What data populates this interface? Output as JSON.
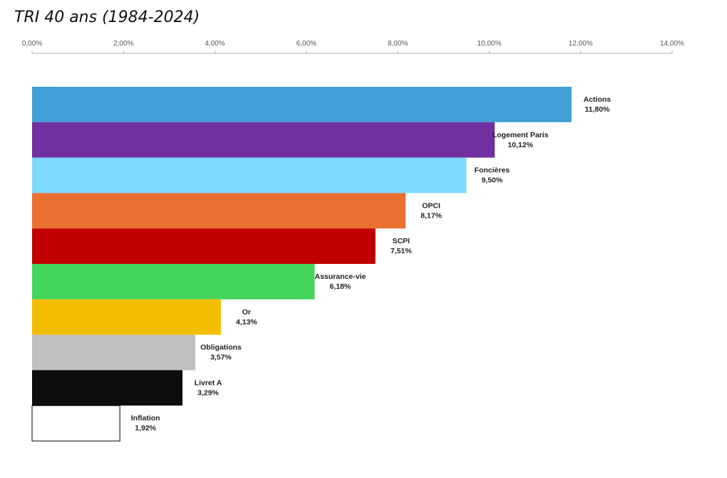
{
  "title": "TRI 40 ans (1984-2024)",
  "chart_data": {
    "type": "bar",
    "orientation": "horizontal",
    "title": "TRI 40 ans (1984-2024)",
    "xlabel": "",
    "ylabel": "",
    "xlim": [
      0,
      14
    ],
    "x_ticks": [
      0,
      2,
      4,
      6,
      8,
      10,
      12,
      14
    ],
    "x_tick_labels": [
      "0,00%",
      "2,00%",
      "4,00%",
      "6,00%",
      "8,00%",
      "10,00%",
      "12,00%",
      "14,00%"
    ],
    "axis_position": "top",
    "grid": false,
    "categories": [
      "Actions",
      "Logement Paris",
      "Foncières",
      "OPCI",
      "SCPI",
      "Assurance-vie",
      "Or",
      "Obligations",
      "Livret A",
      "Inflation"
    ],
    "values": [
      11.8,
      10.12,
      9.5,
      8.17,
      7.51,
      6.18,
      4.13,
      3.57,
      3.29,
      1.92
    ],
    "value_labels": [
      "11,80%",
      "10,12%",
      "9,50%",
      "8,17%",
      "7,51%",
      "6,18%",
      "4,13%",
      "3,57%",
      "3,29%",
      "1,92%"
    ],
    "colors": [
      "#419ED6",
      "#7030A0",
      "#7CD9FD",
      "#EA7032",
      "#C00000",
      "#44D55C",
      "#F4BE00",
      "#BFBFBF",
      "#0D0D0D",
      "#FFFFFF"
    ]
  }
}
